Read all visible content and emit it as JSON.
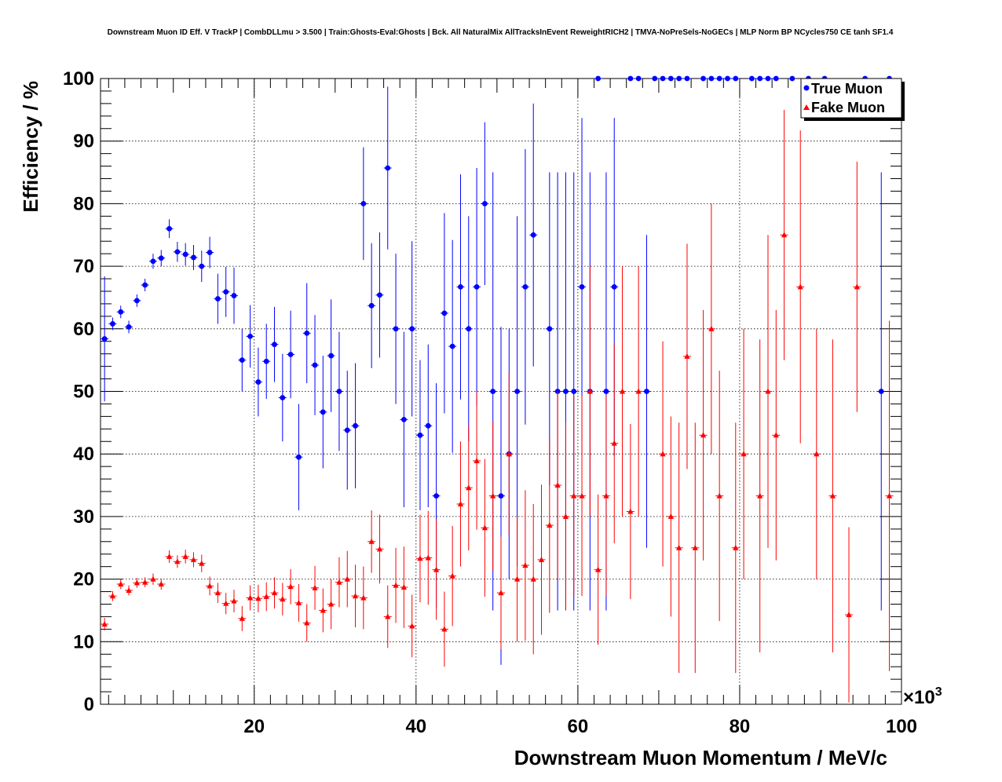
{
  "title": "Downstream Muon ID Eff. V TrackP | CombDLLmu > 3.500 | Train:Ghosts-Eval:Ghosts | Bck. All NaturalMix AllTracksInEvent ReweightRICH2 | TMVA-NoPreSels-NoGECs | MLP Norm BP NCycles750 CE tanh SF1.4",
  "chart_data": {
    "type": "scatter",
    "title": "Downstream Muon ID Eff. V TrackP | CombDLLmu > 3.500 | Train:Ghosts-Eval:Ghosts | Bck. All NaturalMix AllTracksInEvent ReweightRICH2 | TMVA-NoPreSels-NoGECs | MLP Norm BP NCycles750 CE tanh SF1.4",
    "xlabel": "Downstream Muon Momentum / MeV/c",
    "ylabel": "Efficiency / %",
    "x_multiplier": "×10",
    "x_multiplier_exp": "3",
    "xlim": [
      1,
      100
    ],
    "ylim": [
      0,
      100
    ],
    "xticks": [
      20,
      40,
      60,
      80,
      100
    ],
    "yticks": [
      0,
      10,
      20,
      30,
      40,
      50,
      60,
      70,
      80,
      90,
      100
    ],
    "grid": true,
    "legend_position": "top-right",
    "series": [
      {
        "name": "True Muon",
        "color": "#0000ff",
        "marker": "circle",
        "points": [
          [
            1.5,
            58.4,
            10
          ],
          [
            2.5,
            60.8,
            1
          ],
          [
            3.5,
            62.7,
            1
          ],
          [
            4.5,
            60.3,
            1
          ],
          [
            5.5,
            64.5,
            1
          ],
          [
            6.5,
            67,
            1
          ],
          [
            7.5,
            70.8,
            1.2
          ],
          [
            8.5,
            71.3,
            1.3
          ],
          [
            9.5,
            76,
            1.5
          ],
          [
            10.5,
            72.3,
            1.6
          ],
          [
            11.5,
            71.9,
            1.8
          ],
          [
            12.5,
            71.4,
            2
          ],
          [
            13.5,
            70,
            2.5
          ],
          [
            14.5,
            72.2,
            2.5
          ],
          [
            15.5,
            64.8,
            4
          ],
          [
            16.5,
            65.9,
            4
          ],
          [
            17.5,
            65.3,
            4.5
          ],
          [
            18.5,
            55,
            5
          ],
          [
            19.5,
            58.8,
            5
          ],
          [
            20.5,
            51.5,
            5.5
          ],
          [
            21.5,
            54.8,
            6
          ],
          [
            22.5,
            57.5,
            6
          ],
          [
            23.5,
            49,
            7
          ],
          [
            24.5,
            55.9,
            7
          ],
          [
            25.5,
            39.5,
            8.5
          ],
          [
            26.5,
            59.3,
            8
          ],
          [
            27.5,
            54.2,
            8
          ],
          [
            28.5,
            46.7,
            9
          ],
          [
            29.5,
            55.7,
            9
          ],
          [
            30.5,
            50,
            9.5
          ],
          [
            31.5,
            43.8,
            9.5
          ],
          [
            32.5,
            44.5,
            10
          ],
          [
            33.5,
            80,
            9
          ],
          [
            34.5,
            63.7,
            10
          ],
          [
            35.5,
            65.4,
            10
          ],
          [
            36.5,
            85.7,
            13
          ],
          [
            37.5,
            60,
            12
          ],
          [
            38.5,
            45.5,
            14
          ],
          [
            39.5,
            60,
            14
          ],
          [
            40.5,
            43,
            12
          ],
          [
            41.5,
            44.5,
            13
          ],
          [
            42.5,
            33.3,
            18
          ],
          [
            43.5,
            62.5,
            16
          ],
          [
            44.5,
            57.2,
            17
          ],
          [
            45.5,
            66.7,
            18
          ],
          [
            46.5,
            60,
            18
          ],
          [
            47.5,
            66.7,
            19
          ],
          [
            48.5,
            80,
            13
          ],
          [
            49.5,
            50,
            35
          ],
          [
            50.5,
            33.3,
            27
          ],
          [
            51.5,
            40,
            20
          ],
          [
            52.5,
            50,
            28
          ],
          [
            53.5,
            66.7,
            22
          ],
          [
            54.5,
            75,
            21
          ],
          [
            56.5,
            60,
            25
          ],
          [
            57.5,
            50,
            35
          ],
          [
            58.5,
            50,
            35
          ],
          [
            59.5,
            50,
            35
          ],
          [
            60.5,
            66.7,
            27
          ],
          [
            61.5,
            50,
            35
          ],
          [
            62.5,
            100,
            0
          ],
          [
            63.5,
            50,
            35
          ],
          [
            64.5,
            66.7,
            27
          ],
          [
            66.5,
            100,
            0
          ],
          [
            67.5,
            100,
            0
          ],
          [
            68.5,
            50,
            25
          ],
          [
            69.5,
            100,
            0
          ],
          [
            70.5,
            100,
            0
          ],
          [
            71.5,
            100,
            0
          ],
          [
            72.5,
            100,
            0
          ],
          [
            73.5,
            100,
            0
          ],
          [
            75.5,
            100,
            0
          ],
          [
            76.5,
            100,
            0
          ],
          [
            77.5,
            100,
            0
          ],
          [
            78.5,
            100,
            0
          ],
          [
            79.5,
            100,
            0
          ],
          [
            81.5,
            100,
            0
          ],
          [
            82.5,
            100,
            0
          ],
          [
            83.5,
            100,
            0
          ],
          [
            84.5,
            100,
            0
          ],
          [
            86.5,
            100,
            0
          ],
          [
            88.5,
            100,
            0
          ],
          [
            90.5,
            100,
            0
          ],
          [
            95.5,
            100,
            0
          ],
          [
            97.5,
            50,
            35
          ],
          [
            98.5,
            100,
            0
          ]
        ]
      },
      {
        "name": "Fake Muon",
        "color": "#ff0000",
        "marker": "triangle",
        "points": [
          [
            1.5,
            12.8,
            1
          ],
          [
            2.5,
            17.3,
            0.8
          ],
          [
            3.5,
            19.2,
            0.8
          ],
          [
            4.5,
            18.2,
            0.8
          ],
          [
            5.5,
            19.4,
            0.8
          ],
          [
            6.5,
            19.5,
            0.8
          ],
          [
            7.5,
            20,
            0.9
          ],
          [
            8.5,
            19.2,
            0.9
          ],
          [
            9.5,
            23.6,
            1
          ],
          [
            10.5,
            22.8,
            1
          ],
          [
            11.5,
            23.6,
            1.1
          ],
          [
            12.5,
            23.1,
            1.2
          ],
          [
            13.5,
            22.5,
            1.4
          ],
          [
            14.5,
            18.9,
            1.5
          ],
          [
            15.5,
            17.8,
            1.6
          ],
          [
            16.5,
            16.1,
            1.7
          ],
          [
            17.5,
            16.5,
            1.8
          ],
          [
            18.5,
            13.7,
            2
          ],
          [
            19.5,
            17,
            2
          ],
          [
            20.5,
            16.9,
            2.2
          ],
          [
            21.5,
            17.2,
            2.3
          ],
          [
            22.5,
            17.8,
            2.5
          ],
          [
            23.5,
            16.8,
            2.6
          ],
          [
            24.5,
            18.8,
            2.8
          ],
          [
            25.5,
            16.2,
            3
          ],
          [
            26.5,
            13,
            3
          ],
          [
            27.5,
            18.6,
            3.5
          ],
          [
            28.5,
            15,
            3.5
          ],
          [
            29.5,
            16,
            4
          ],
          [
            30.5,
            19.5,
            4
          ],
          [
            31.5,
            20,
            4.5
          ],
          [
            32.5,
            17.3,
            5
          ],
          [
            33.5,
            17,
            5
          ],
          [
            34.5,
            26,
            5
          ],
          [
            35.5,
            24.8,
            5.5
          ],
          [
            36.5,
            14,
            5
          ],
          [
            37.5,
            19,
            6
          ],
          [
            38.5,
            18.7,
            6.5
          ],
          [
            39.5,
            12.5,
            5
          ],
          [
            40.5,
            23.3,
            7
          ],
          [
            41.5,
            23.4,
            7.5
          ],
          [
            42.5,
            21.5,
            8
          ],
          [
            43.5,
            12,
            6
          ],
          [
            44.5,
            20.5,
            8
          ],
          [
            45.5,
            32,
            10
          ],
          [
            46.5,
            34.6,
            10
          ],
          [
            47.5,
            38.9,
            11
          ],
          [
            48.5,
            28.2,
            11
          ],
          [
            49.5,
            33.3,
            12
          ],
          [
            50.5,
            17.8,
            9
          ],
          [
            51.5,
            40,
            13
          ],
          [
            52.5,
            20,
            10
          ],
          [
            53.5,
            22.2,
            12
          ],
          [
            54.5,
            20,
            12
          ],
          [
            55.5,
            23.1,
            12
          ],
          [
            56.5,
            28.6,
            14
          ],
          [
            57.5,
            35,
            15
          ],
          [
            58.5,
            30,
            15
          ],
          [
            59.5,
            33.3,
            16
          ],
          [
            60.5,
            33.3,
            16
          ],
          [
            61.5,
            50,
            20
          ],
          [
            62.5,
            21.5,
            12
          ],
          [
            63.5,
            33.3,
            16
          ],
          [
            64.5,
            41.7,
            16
          ],
          [
            65.5,
            50,
            20
          ],
          [
            66.5,
            30.8,
            14
          ],
          [
            67.5,
            50,
            20
          ],
          [
            70.5,
            40,
            18
          ],
          [
            71.5,
            30,
            16
          ],
          [
            72.5,
            25,
            20
          ],
          [
            73.5,
            55.6,
            18
          ],
          [
            74.5,
            25,
            20
          ],
          [
            75.5,
            43,
            20
          ],
          [
            76.5,
            60,
            20
          ],
          [
            77.5,
            33.3,
            20
          ],
          [
            79.5,
            25,
            20
          ],
          [
            80.5,
            40,
            20
          ],
          [
            82.5,
            33.3,
            25
          ],
          [
            83.5,
            50,
            25
          ],
          [
            84.5,
            43,
            20
          ],
          [
            85.5,
            75,
            20
          ],
          [
            87.5,
            66.7,
            25
          ],
          [
            89.5,
            40,
            20
          ],
          [
            91.5,
            33.3,
            25
          ],
          [
            93.5,
            14.3,
            14
          ],
          [
            94.5,
            66.7,
            20
          ],
          [
            98.5,
            33.3,
            28
          ]
        ]
      }
    ]
  }
}
